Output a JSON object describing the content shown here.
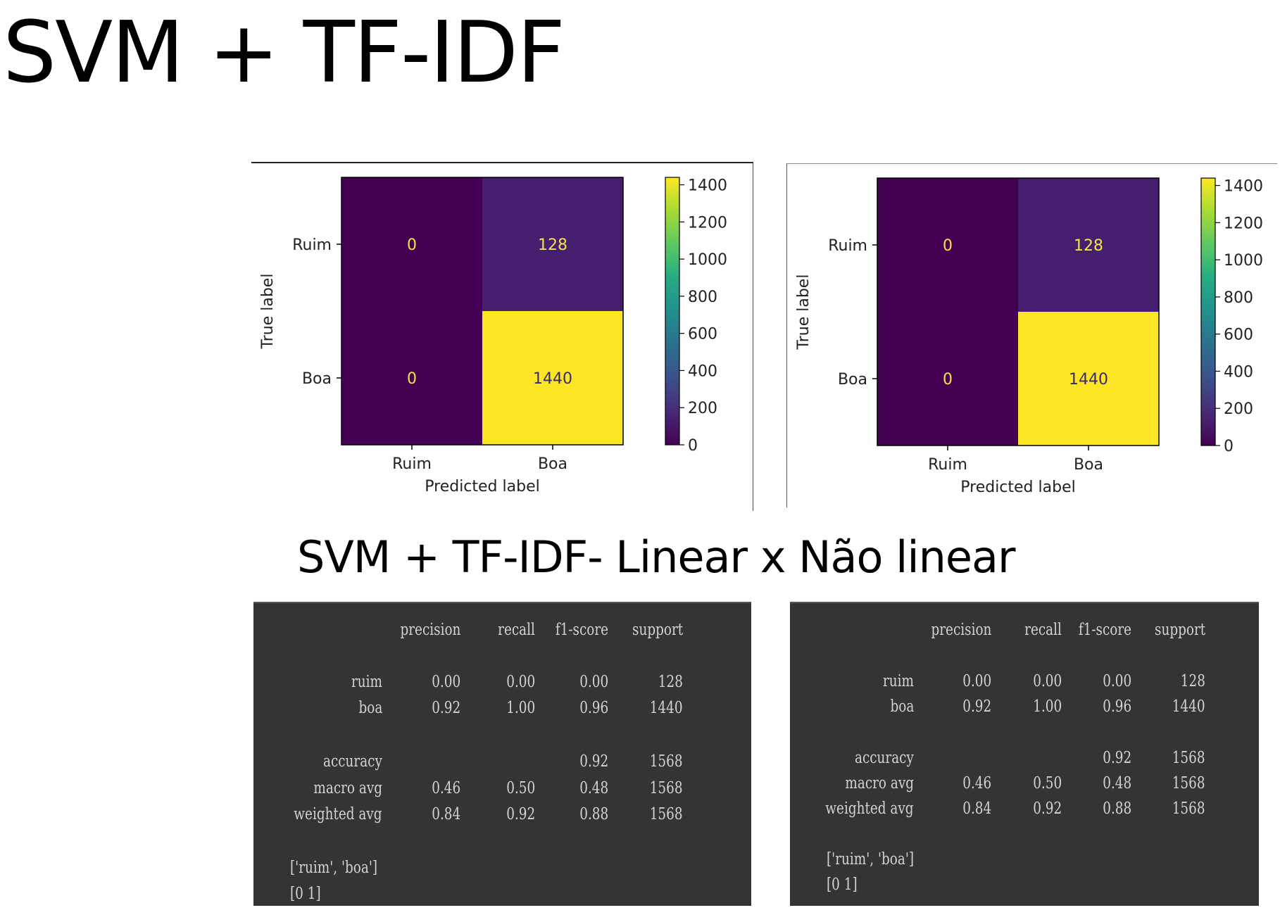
{
  "slide": {
    "title": "SVM + TF-IDF",
    "subtitle": "SVM + TF-IDF- Linear x Não linear"
  },
  "chart_data": [
    {
      "type": "heatmap",
      "title": "",
      "xlabel": "Predicted label",
      "ylabel": "True label",
      "x_categories": [
        "Ruim",
        "Boa"
      ],
      "y_categories": [
        "Ruim",
        "Boa"
      ],
      "values": [
        [
          0,
          128
        ],
        [
          0,
          1440
        ]
      ],
      "colormap": "viridis",
      "colorbar": {
        "range": [
          0,
          1440
        ],
        "ticks": [
          0,
          200,
          400,
          600,
          800,
          1000,
          1200,
          1400
        ]
      }
    },
    {
      "type": "heatmap",
      "title": "",
      "xlabel": "Predicted label",
      "ylabel": "True label",
      "x_categories": [
        "Ruim",
        "Boa"
      ],
      "y_categories": [
        "Ruim",
        "Boa"
      ],
      "values": [
        [
          0,
          128
        ],
        [
          0,
          1440
        ]
      ],
      "colormap": "viridis",
      "colorbar": {
        "range": [
          0,
          1440
        ],
        "ticks": [
          0,
          200,
          400,
          600,
          800,
          1000,
          1200,
          1400
        ]
      }
    }
  ],
  "reports": [
    {
      "headers": [
        "precision",
        "recall",
        "f1-score",
        "support"
      ],
      "rows": [
        {
          "label": "ruim",
          "values": [
            "0.00",
            "0.00",
            "0.00",
            "128"
          ]
        },
        {
          "label": "boa",
          "values": [
            "0.92",
            "1.00",
            "0.96",
            "1440"
          ]
        },
        {
          "label": "accuracy",
          "values": [
            "",
            "",
            "0.92",
            "1568"
          ]
        },
        {
          "label": "macro avg",
          "values": [
            "0.46",
            "0.50",
            "0.48",
            "1568"
          ]
        },
        {
          "label": "weighted avg",
          "values": [
            "0.84",
            "0.92",
            "0.88",
            "1568"
          ]
        }
      ],
      "footer": [
        "['ruim', 'boa']",
        "[0 1]"
      ]
    },
    {
      "headers": [
        "precision",
        "recall",
        "f1-score",
        "support"
      ],
      "rows": [
        {
          "label": "ruim",
          "values": [
            "0.00",
            "0.00",
            "0.00",
            "128"
          ]
        },
        {
          "label": "boa",
          "values": [
            "0.92",
            "1.00",
            "0.96",
            "1440"
          ]
        },
        {
          "label": "accuracy",
          "values": [
            "",
            "",
            "0.92",
            "1568"
          ]
        },
        {
          "label": "macro avg",
          "values": [
            "0.46",
            "0.50",
            "0.48",
            "1568"
          ]
        },
        {
          "label": "weighted avg",
          "values": [
            "0.84",
            "0.92",
            "0.88",
            "1568"
          ]
        }
      ],
      "footer": [
        "['ruim', 'boa']",
        "[0 1]"
      ]
    }
  ]
}
